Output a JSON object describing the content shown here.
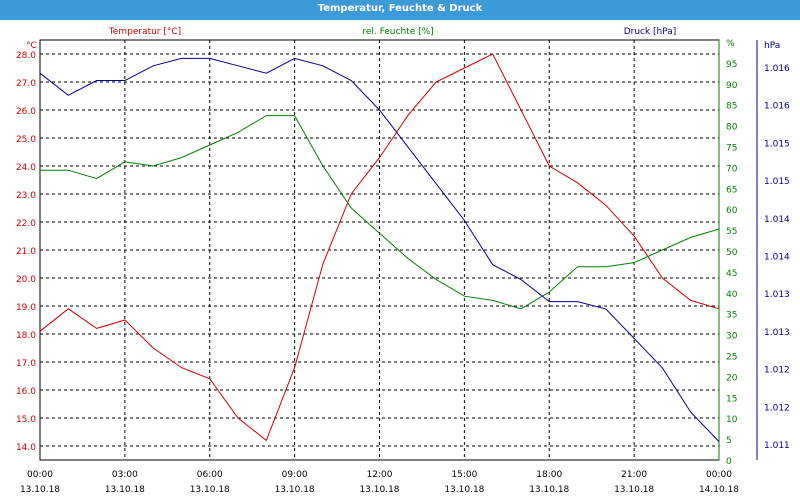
{
  "chart_data": {
    "type": "line",
    "title": "Temperatur, Feuchte & Druck",
    "x": [
      "13.10.18 00:00",
      "13.10.18 01:00",
      "13.10.18 02:00",
      "13.10.18 03:00",
      "13.10.18 04:00",
      "13.10.18 05:00",
      "13.10.18 06:00",
      "13.10.18 07:00",
      "13.10.18 08:00",
      "13.10.18 09:00",
      "13.10.18 10:00",
      "13.10.18 11:00",
      "13.10.18 12:00",
      "13.10.18 13:00",
      "13.10.18 14:00",
      "13.10.18 15:00",
      "13.10.18 16:00",
      "13.10.18 17:00",
      "13.10.18 18:00",
      "13.10.18 19:00",
      "13.10.18 20:00",
      "13.10.18 21:00",
      "13.10.18 22:00",
      "13.10.18 23:00",
      "14.10.18 00:00"
    ],
    "x_ticks": [
      {
        "time": "00:00",
        "date": "13.10.18"
      },
      {
        "time": "03:00",
        "date": "13.10.18"
      },
      {
        "time": "06:00",
        "date": "13.10.18"
      },
      {
        "time": "09:00",
        "date": "13.10.18"
      },
      {
        "time": "12:00",
        "date": "13.10.18"
      },
      {
        "time": "15:00",
        "date": "13.10.18"
      },
      {
        "time": "18:00",
        "date": "13.10.18"
      },
      {
        "time": "21:00",
        "date": "13.10.18"
      },
      {
        "time": "00:00",
        "date": "14.10.18"
      }
    ],
    "grid": true,
    "axes": {
      "left": {
        "unit": "°C",
        "min": 13.5,
        "max": 28.5,
        "ticks": [
          "14.0",
          "15.0",
          "16.0",
          "17.0",
          "18.0",
          "19.0",
          "20.0",
          "21.0",
          "22.0",
          "23.0",
          "24.0",
          "25.0",
          "26.0",
          "27.0",
          "28.0"
        ]
      },
      "right1": {
        "unit": "%",
        "min": 0,
        "max": 100,
        "ticks": [
          "0",
          "5",
          "10",
          "15",
          "20",
          "25",
          "30",
          "35",
          "40",
          "45",
          "50",
          "55",
          "60",
          "65",
          "70",
          "75",
          "80",
          "85",
          "90",
          "95",
          "%"
        ]
      },
      "right2": {
        "unit": "hPa",
        "min": 1010.85,
        "max": 1016.55,
        "ticks": [
          "1.011",
          "1.012",
          "1.012",
          "1.013",
          "1.013",
          "1.014",
          "1.014",
          "1.015",
          "1.015",
          "1.016",
          "1.016"
        ]
      }
    },
    "series": [
      {
        "name": "Temperatur [°C]",
        "axis": "left",
        "color": "#cc0000",
        "values": [
          18.1,
          18.9,
          18.2,
          18.5,
          17.5,
          16.8,
          16.4,
          15.0,
          14.2,
          16.8,
          20.5,
          23.0,
          24.3,
          25.8,
          27.0,
          27.5,
          28.0,
          26.0,
          24.0,
          23.4,
          22.6,
          21.5,
          20.0,
          19.2,
          18.9
        ]
      },
      {
        "name": "rel. Feuchte [%]",
        "axis": "right1",
        "color": "#008000",
        "values": [
          69,
          69,
          67,
          71,
          70,
          72,
          75,
          78,
          82,
          82,
          70,
          60,
          54,
          48,
          43,
          39,
          38,
          36,
          40,
          46,
          46,
          47,
          50,
          53,
          55
        ]
      },
      {
        "name": "Druck [hPa]",
        "axis": "right2",
        "color": "#00008b",
        "values": [
          1016.1,
          1015.8,
          1016.0,
          1016.0,
          1016.2,
          1016.3,
          1016.3,
          1016.2,
          1016.1,
          1016.3,
          1016.2,
          1016.0,
          1015.6,
          1015.1,
          1014.6,
          1014.1,
          1013.5,
          1013.3,
          1013.0,
          1013.0,
          1012.9,
          1012.5,
          1012.1,
          1011.5,
          1011.1
        ]
      }
    ]
  }
}
